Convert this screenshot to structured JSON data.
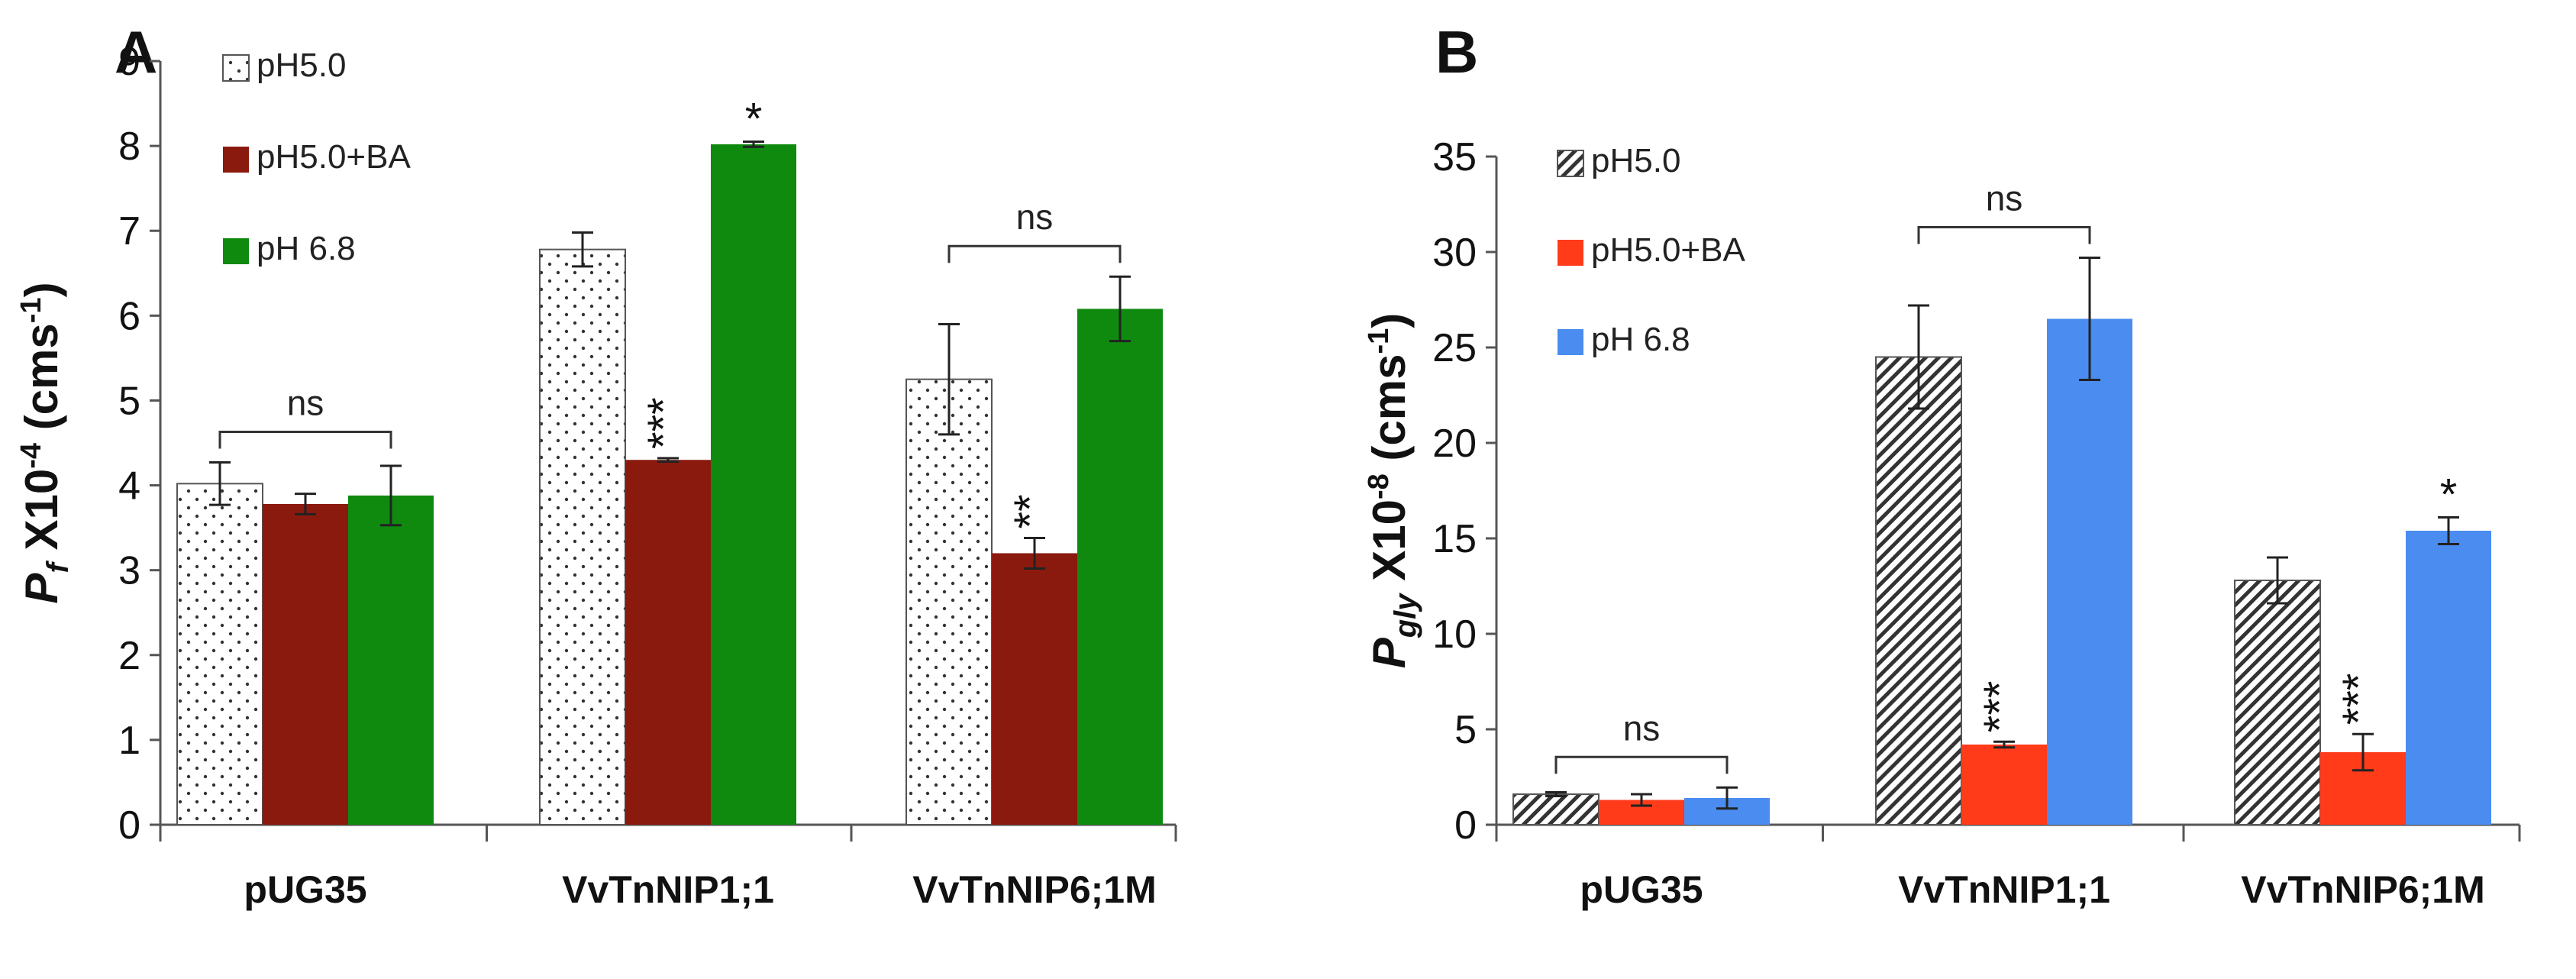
{
  "chart_data": [
    {
      "type": "bar",
      "panel": "A",
      "title": "",
      "ylabel_main": "P",
      "ylabel_sub": "f",
      "ylabel_rest": " X10",
      "ylabel_exp": "-4",
      "ylabel_unit": " (cms",
      "ylabel_unit_exp": "-1",
      "ylabel_close": ")",
      "ylim": [
        0,
        9
      ],
      "yticks": [
        0,
        1,
        2,
        3,
        4,
        5,
        6,
        7,
        8,
        9
      ],
      "categories": [
        "pUG35",
        "VvTnNIP1;1",
        "VvTnNIP6;1M"
      ],
      "series": [
        {
          "name": "pH5.0",
          "color": "#ffffff",
          "pattern": "dots",
          "values": [
            4.02,
            6.78,
            5.25
          ],
          "errors": [
            0.25,
            0.2,
            0.65
          ]
        },
        {
          "name": "pH5.0+BA",
          "color": "#8b1a0e",
          "pattern": "solid",
          "values": [
            3.78,
            4.3,
            3.2
          ],
          "errors": [
            0.12,
            0.02,
            0.18
          ]
        },
        {
          "name": "pH 6.8",
          "color": "#0f8a0f",
          "pattern": "solid",
          "values": [
            3.88,
            8.02,
            6.08
          ],
          "errors": [
            0.35,
            0.03,
            0.38
          ]
        }
      ],
      "annotations": [
        {
          "text": "ns",
          "type": "bracket",
          "group": 0
        },
        {
          "text": "*",
          "series": 2,
          "group": 1
        },
        {
          "text": "***",
          "series": 1,
          "group": 1
        },
        {
          "text": "ns",
          "type": "bracket",
          "group": 2
        },
        {
          "text": "**",
          "series": 1,
          "group": 2
        }
      ],
      "legend": "top-left"
    },
    {
      "type": "bar",
      "panel": "B",
      "title": "",
      "ylabel_main": "P",
      "ylabel_sub": "gly",
      "ylabel_rest": " X10",
      "ylabel_exp": "-8",
      "ylabel_unit": " (cms",
      "ylabel_unit_exp": "-1",
      "ylabel_close": ")",
      "ylim": [
        0,
        35
      ],
      "yticks": [
        0,
        5,
        10,
        15,
        20,
        25,
        30,
        35
      ],
      "categories": [
        "pUG35",
        "VvTnNIP1;1",
        "VvTnNIP6;1M"
      ],
      "series": [
        {
          "name": "pH5.0",
          "color": "#ffffff",
          "pattern": "hatch",
          "values": [
            1.6,
            24.5,
            12.8
          ],
          "errors": [
            0.1,
            2.7,
            1.2
          ]
        },
        {
          "name": "pH5.0+BA",
          "color": "#ff3b1a",
          "pattern": "solid",
          "values": [
            1.3,
            4.2,
            3.8
          ],
          "errors": [
            0.3,
            0.15,
            0.95
          ]
        },
        {
          "name": "pH 6.8",
          "color": "#4a8cf0",
          "pattern": "solid",
          "values": [
            1.4,
            26.5,
            15.4
          ],
          "errors": [
            0.55,
            3.2,
            0.7
          ]
        }
      ],
      "annotations": [
        {
          "text": "ns",
          "type": "bracket",
          "group": 0
        },
        {
          "text": "ns",
          "type": "bracket",
          "group": 1
        },
        {
          "text": "***",
          "series": 1,
          "group": 1
        },
        {
          "text": "*",
          "series": 2,
          "group": 2
        },
        {
          "text": "***",
          "series": 1,
          "group": 2
        }
      ],
      "legend": "top-left"
    }
  ]
}
